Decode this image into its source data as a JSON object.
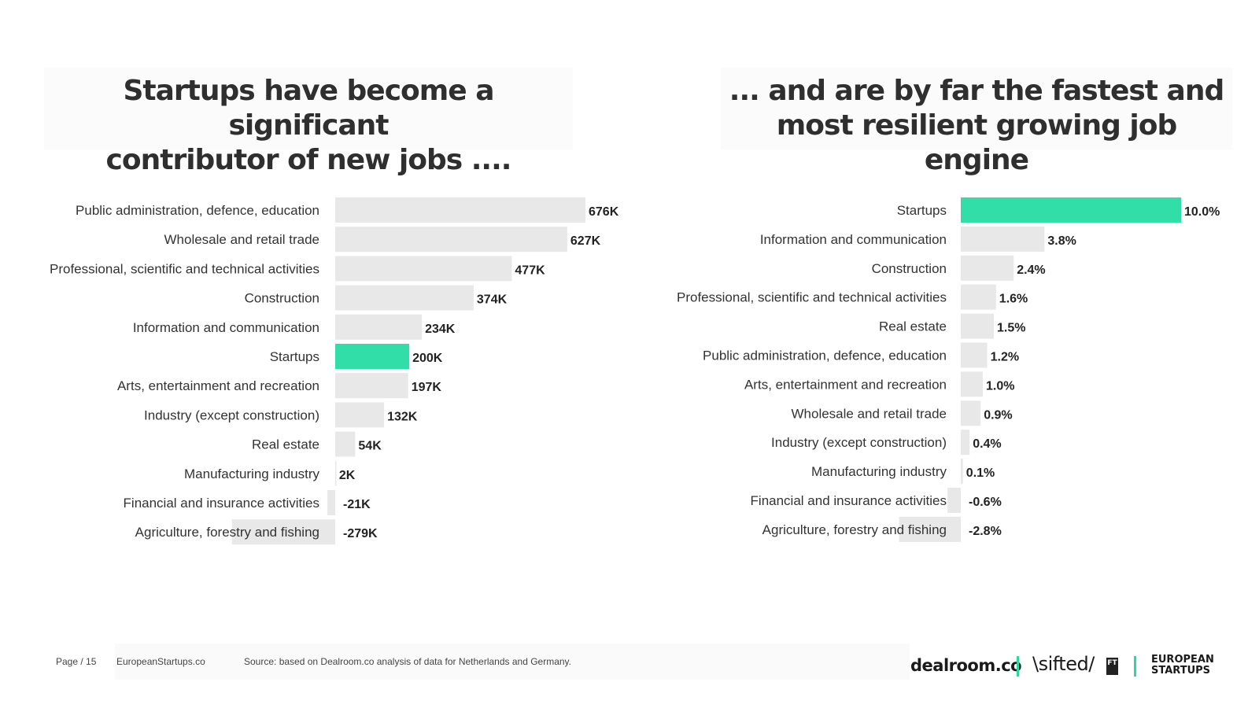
{
  "titles": {
    "left_line1": "Startups have become a significant",
    "left_line2": "contributor of new jobs ....",
    "right_line1": "... and are by far the fastest and",
    "right_line2": "most resilient growing job engine"
  },
  "chart_data": [
    {
      "type": "bar",
      "orientation": "horizontal",
      "categories": [
        "Public administration, defence, education",
        "Wholesale and retail trade",
        "Professional, scientific and technical activities",
        "Construction",
        "Information and communication",
        "Startups",
        "Arts, entertainment and recreation",
        "Industry (except construction)",
        "Real estate",
        "Manufacturing industry",
        "Financial and insurance activities",
        "Agriculture, forestry and fishing"
      ],
      "values": [
        676,
        627,
        477,
        374,
        234,
        200,
        197,
        132,
        54,
        2,
        -21,
        -279
      ],
      "labels": [
        "676K",
        "627K",
        "477K",
        "374K",
        "234K",
        "200K",
        "197K",
        "132K",
        "54K",
        "2K",
        "-21K",
        "-279K"
      ],
      "unit": "K",
      "highlight": "Startups",
      "colors": {
        "bar": "#e8e8e8",
        "highlight": "#32dea7"
      }
    },
    {
      "type": "bar",
      "orientation": "horizontal",
      "categories": [
        "Startups",
        "Information and communication",
        "Construction",
        "Professional, scientific and technical activities",
        "Real estate",
        "Public administration, defence, education",
        "Arts, entertainment and recreation",
        "Wholesale and retail trade",
        "Industry (except construction)",
        "Manufacturing industry",
        "Financial and insurance activities",
        "Agriculture, forestry and fishing"
      ],
      "values": [
        10.0,
        3.8,
        2.4,
        1.6,
        1.5,
        1.2,
        1.0,
        0.9,
        0.4,
        0.1,
        -0.6,
        -2.8
      ],
      "labels": [
        "10.0%",
        "3.8%",
        "2.4%",
        "1.6%",
        "1.5%",
        "1.2%",
        "1.0%",
        "0.9%",
        "0.4%",
        "0.1%",
        "-0.6%",
        "-2.8%"
      ],
      "unit": "%",
      "highlight": "Startups",
      "colors": {
        "bar": "#e8e8e8",
        "highlight": "#32dea7"
      }
    }
  ],
  "footer": {
    "page": "Page / 15",
    "site": "EuropeanStartups.co",
    "source": "Source: based on Dealroom.co analysis of data for Netherlands and Germany."
  },
  "logos": {
    "dealroom": "dealroom.co",
    "sifted": "\\sifted/",
    "ft": "FT",
    "european_startups_line1": "EUROPEAN",
    "european_startups_line2": "STARTUPS"
  }
}
